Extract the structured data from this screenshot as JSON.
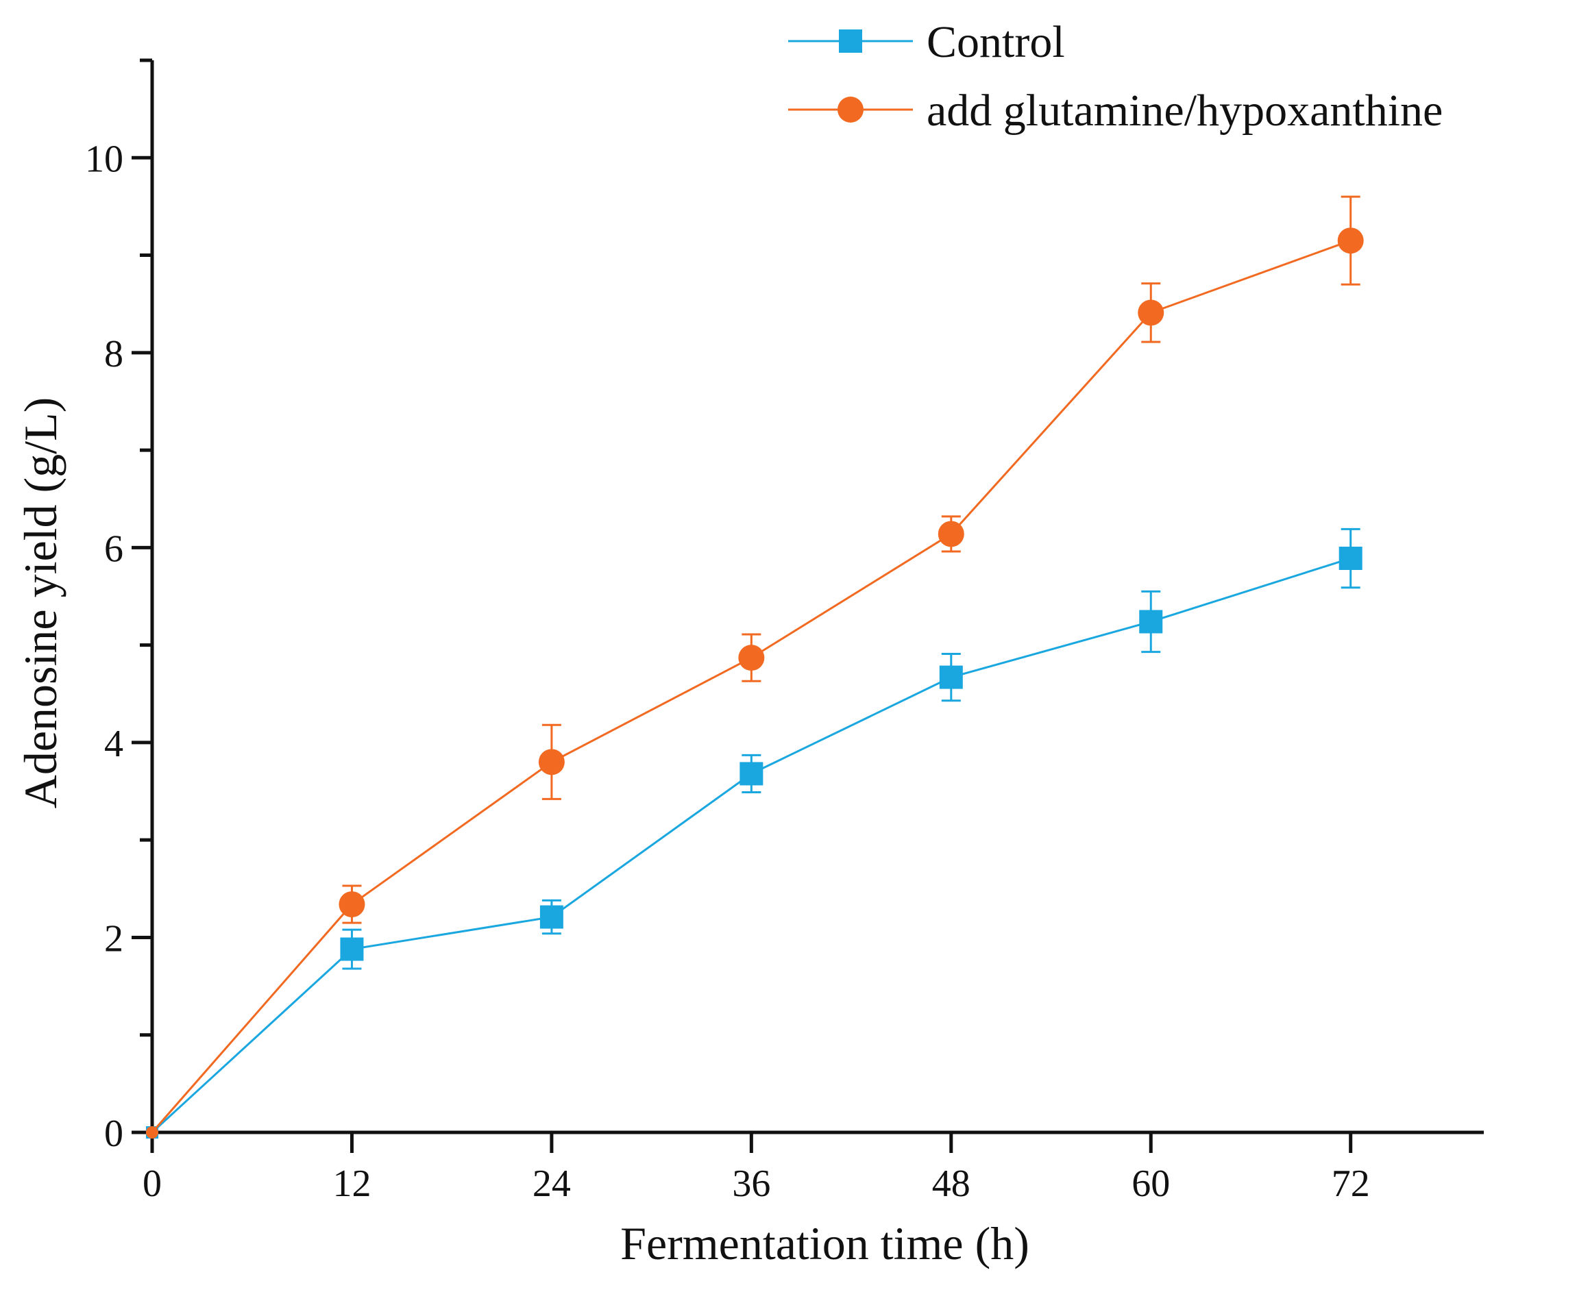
{
  "chart_data": {
    "type": "line",
    "title": "",
    "xlabel": "Fermentation time (h)",
    "ylabel": "Adenosine yield (g/L)",
    "x": [
      0,
      12,
      24,
      36,
      48,
      60,
      72
    ],
    "xlim": [
      0,
      80
    ],
    "ylim": [
      0,
      11
    ],
    "x_ticks": [
      0,
      12,
      24,
      36,
      48,
      60,
      72
    ],
    "x_tick_labels": [
      "0",
      "12",
      "24",
      "36",
      "48",
      "60",
      "72"
    ],
    "y_major_ticks": [
      0,
      2,
      4,
      6,
      8,
      10
    ],
    "y_tick_labels": [
      "0",
      "2",
      "4",
      "6",
      "8",
      "10"
    ],
    "y_minor_ticks": [
      1,
      3,
      5,
      7,
      9,
      11
    ],
    "grid": false,
    "legend_position": "top-right",
    "series": [
      {
        "name": "Control",
        "color": "#1aa7e0",
        "marker": "square",
        "values": [
          0,
          1.88,
          2.21,
          3.68,
          4.67,
          5.24,
          5.89
        ],
        "errors": [
          0,
          0.2,
          0.17,
          0.19,
          0.24,
          0.31,
          0.3
        ]
      },
      {
        "name": "add glutamine/hypoxanthine",
        "color": "#f26a21",
        "marker": "circle",
        "values": [
          0,
          2.34,
          3.8,
          4.87,
          6.14,
          8.41,
          9.15
        ],
        "errors": [
          0,
          0.19,
          0.38,
          0.24,
          0.18,
          0.3,
          0.45
        ]
      }
    ]
  }
}
